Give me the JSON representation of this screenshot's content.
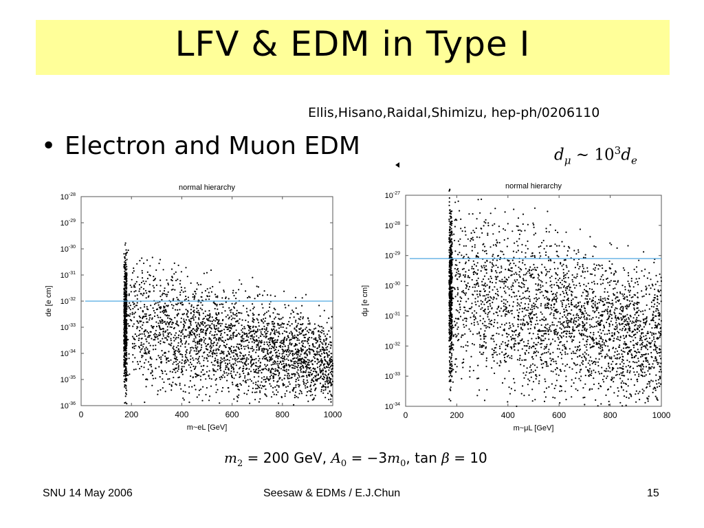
{
  "slide": {
    "title": "LFV & EDM in Type I",
    "citation": "Ellis,Hisano,Raidal,Shimizu, hep-ph/0206110",
    "bullet_marker": "•",
    "bullet_text": "Electron and Muon EDM",
    "relation": {
      "lhs": "d",
      "lhs_sub": "μ",
      "op": "∼",
      "base": "10",
      "exp": "3",
      "rhs": "d",
      "rhs_sub": "e"
    },
    "params": {
      "m2_sym": "m",
      "m2_sub": "2",
      "m2_val": "= 200 GeV,",
      "a0_sym": "A",
      "a0_sub": "0",
      "a0_val": "= −3",
      "m0_sym": "m",
      "m0_sub": "0",
      "tan": "tan",
      "beta": "β",
      "tan_val": "= 10"
    }
  },
  "footer": {
    "left": "SNU  14 May 2006",
    "center": "Seesaw & EDMs / E.J.Chun",
    "page": "15"
  },
  "chart_data": [
    {
      "type": "scatter",
      "title": "normal hierarchy",
      "xlabel": "m~eL [GeV]",
      "ylabel": "de [e cm]",
      "xlim": [
        0,
        1000
      ],
      "ylim_log10": [
        -36,
        -28
      ],
      "log_y": true,
      "x_ticks": [
        "0",
        "200",
        "400",
        "600",
        "800",
        "1000"
      ],
      "y_ticks": [
        "10-28",
        "10-29",
        "10-30",
        "10-31",
        "10-32",
        "10-33",
        "10-34",
        "10-35",
        "10-36"
      ],
      "reference_line": {
        "y_log10": -32,
        "color": "#4da6e0"
      },
      "point_region": {
        "x_min": 170,
        "x_max": 1000,
        "log_y_top_at_xmin": -30,
        "log_y_top_at_xmax": -32.2,
        "log_y_bottom": -36
      },
      "point_color": "#000000"
    },
    {
      "type": "scatter",
      "title": "normal hierarchy",
      "xlabel": "m~μL [GeV]",
      "ylabel": "dμ [e cm]",
      "xlim": [
        0,
        1000
      ],
      "ylim_log10": [
        -34,
        -27
      ],
      "log_y": true,
      "x_ticks": [
        "0",
        "200",
        "400",
        "600",
        "800",
        "1000"
      ],
      "y_ticks": [
        "10-27",
        "10-28",
        "10-29",
        "10-30",
        "10-31",
        "10-32",
        "10-33",
        "10-34"
      ],
      "reference_line": {
        "y_log10": -29.1,
        "color": "#4da6e0"
      },
      "point_region": {
        "x_min": 170,
        "x_max": 1000,
        "log_y_top_at_xmin": -27,
        "log_y_top_at_xmax": -28.8,
        "log_y_bottom": -34
      },
      "point_color": "#000000"
    }
  ]
}
